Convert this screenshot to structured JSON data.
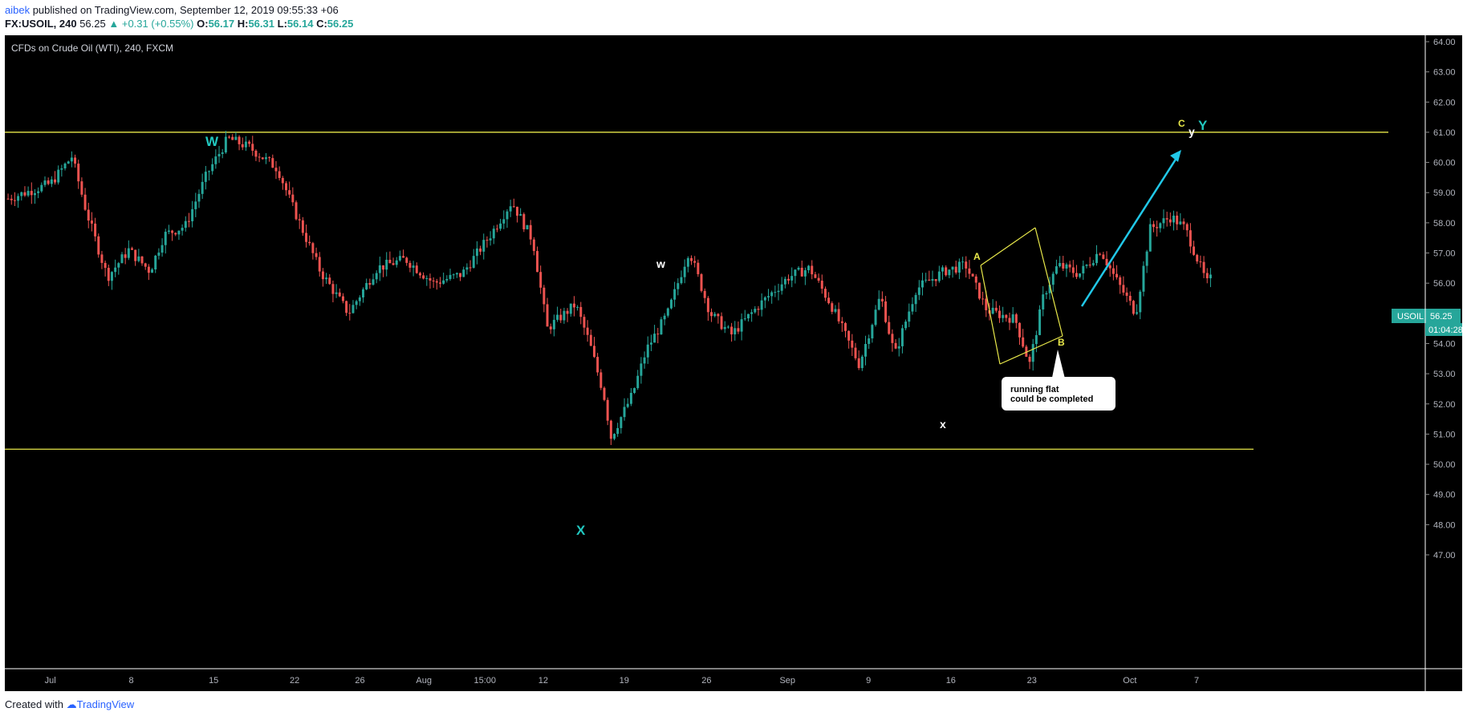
{
  "header": {
    "user": "aibek",
    "published": " published on TradingView.com, September 12, 2019 09:55:33 +06",
    "symbol": "FX:USOIL, 240",
    "last": "56.25",
    "change": "▲ +0.31 (+0.55%)",
    "o_label": "O:",
    "o_val": "56.17",
    "h_label": "H:",
    "h_val": "56.31",
    "l_label": "L:",
    "l_val": "56.14",
    "c_label": "C:",
    "c_val": "56.25"
  },
  "footer": {
    "created": "Created with",
    "brand": "TradingView"
  },
  "colors": {
    "up": "#26a69a",
    "down": "#ef5350",
    "level": "#e8e84a",
    "arrow": "#21c8e8",
    "wave_major": "#21c8c0"
  },
  "chart_data": {
    "type": "candlestick",
    "title": "CFDs on Crude Oil (WTI), 240, FXCM",
    "symbol": "USOIL",
    "ylim": [
      46,
      64
    ],
    "y_ticks": [
      "64.00",
      "63.00",
      "62.00",
      "61.00",
      "60.00",
      "59.00",
      "58.00",
      "57.00",
      "56.00",
      "55.00",
      "54.00",
      "53.00",
      "52.00",
      "51.00",
      "50.00",
      "49.00",
      "48.00",
      "47.00"
    ],
    "x_ticks": [
      "Jul",
      "8",
      "15",
      "22",
      "26",
      "Aug",
      "15:00",
      "12",
      "19",
      "26",
      "Sep",
      "9",
      "16",
      "23",
      "Oct",
      "7"
    ],
    "last_price": "56.25",
    "countdown": "01:04:28",
    "levels": [
      61.0,
      50.5
    ],
    "price_path": [
      [
        0,
        58.8
      ],
      [
        0.03,
        59.3
      ],
      [
        0.045,
        60.2
      ],
      [
        0.055,
        58.4
      ],
      [
        0.07,
        56.2
      ],
      [
        0.085,
        57.1
      ],
      [
        0.1,
        56.4
      ],
      [
        0.11,
        57.6
      ],
      [
        0.125,
        57.9
      ],
      [
        0.14,
        59.6
      ],
      [
        0.155,
        60.8
      ],
      [
        0.17,
        60.5
      ],
      [
        0.19,
        59.8
      ],
      [
        0.2,
        58.6
      ],
      [
        0.22,
        56.4
      ],
      [
        0.24,
        55.0
      ],
      [
        0.26,
        56.5
      ],
      [
        0.28,
        56.8
      ],
      [
        0.3,
        56.0
      ],
      [
        0.32,
        56.3
      ],
      [
        0.34,
        57.6
      ],
      [
        0.355,
        58.7
      ],
      [
        0.37,
        57.4
      ],
      [
        0.38,
        54.5
      ],
      [
        0.4,
        55.3
      ],
      [
        0.41,
        54.0
      ],
      [
        0.42,
        52.3
      ],
      [
        0.425,
        50.9
      ],
      [
        0.44,
        52.3
      ],
      [
        0.45,
        53.8
      ],
      [
        0.465,
        55.0
      ],
      [
        0.48,
        57.1
      ],
      [
        0.495,
        55.0
      ],
      [
        0.51,
        54.3
      ],
      [
        0.53,
        55.3
      ],
      [
        0.55,
        56.2
      ],
      [
        0.565,
        56.5
      ],
      [
        0.58,
        55.3
      ],
      [
        0.6,
        53.3
      ],
      [
        0.615,
        55.6
      ],
      [
        0.625,
        53.6
      ],
      [
        0.64,
        55.8
      ],
      [
        0.66,
        56.4
      ],
      [
        0.675,
        56.6
      ],
      [
        0.69,
        55.1
      ],
      [
        0.71,
        54.8
      ],
      [
        0.72,
        53.3
      ],
      [
        0.73,
        55.6
      ],
      [
        0.74,
        56.6
      ],
      [
        0.755,
        56.3
      ],
      [
        0.77,
        57.1
      ],
      [
        0.78,
        56.2
      ],
      [
        0.795,
        55.0
      ],
      [
        0.805,
        57.8
      ],
      [
        0.82,
        58.2
      ],
      [
        0.83,
        57.8
      ],
      [
        0.845,
        56.0
      ],
      [
        0.85,
        56.25
      ]
    ],
    "annotations": {
      "W": "W",
      "X": "X",
      "Y": "Y",
      "w": "w",
      "x": "x",
      "y": "y",
      "A": "A",
      "B": "B",
      "C": "C",
      "callout_line1": "running flat",
      "callout_line2": "could be completed"
    }
  }
}
